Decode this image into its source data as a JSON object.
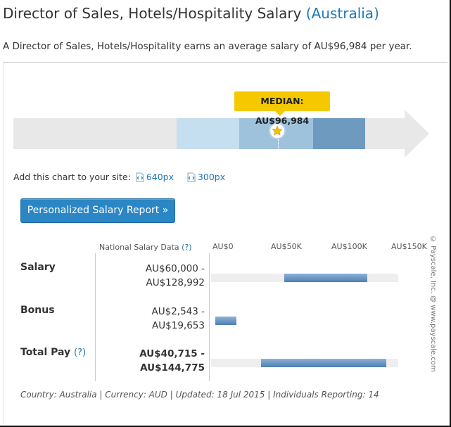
{
  "header": {
    "title": "Director of Sales, Hotels/Hospitality Salary",
    "location": "(Australia)",
    "subtitle": "A Director of Sales, Hotels/Hospitality earns an average salary of AU$96,984 per year."
  },
  "range_chart": {
    "median_label": "MEDIAN: AU$96,984",
    "colors": {
      "light": "#c5dff0",
      "mid": "#9fc2dc",
      "dark": "#6e9abf",
      "median_tag": "#f5c900"
    },
    "star_icon": "star-icon"
  },
  "embed": {
    "prompt": "Add this chart to your site:",
    "option_640": "640px",
    "option_300": "300px"
  },
  "cta": {
    "label": "Personalized Salary Report »"
  },
  "table": {
    "header_label": "National Salary Data",
    "header_help": "(?)",
    "axis_ticks": [
      "AU$0",
      "AU$50K",
      "AU$100K",
      "AU$150K"
    ],
    "rows": [
      {
        "label": "Salary",
        "help": "",
        "value_low": "AU$60,000 -",
        "value_high": "AU$128,992",
        "low": 60000,
        "high": 128992
      },
      {
        "label": "Bonus",
        "help": "",
        "value_low": "AU$2,543 -",
        "value_high": "AU$19,653",
        "low": 2543,
        "high": 19653
      },
      {
        "label": "Total Pay",
        "help": "(?)",
        "value_low": "AU$40,715 -",
        "value_high": "AU$144,775",
        "low": 40715,
        "high": 144775
      }
    ],
    "copyright": "© Payscale, Inc. @ www.payscale.com"
  },
  "footer": "Country: Australia | Currency: AUD | Updated: 18 Jul 2015 | Individuals Reporting: 14"
}
